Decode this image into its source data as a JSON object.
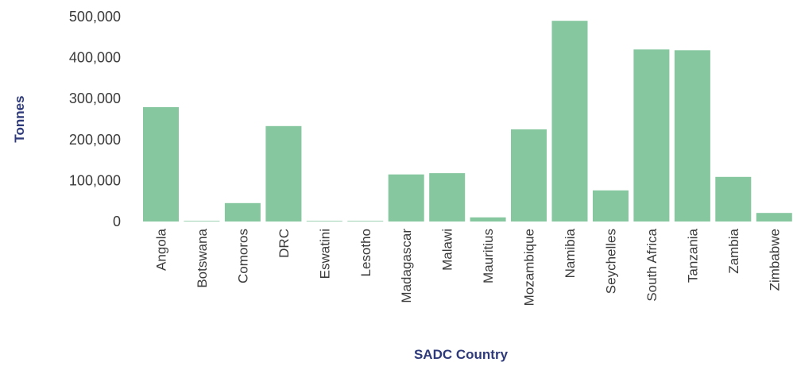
{
  "chart_data": {
    "type": "bar",
    "title": "",
    "xlabel": "SADC Country",
    "ylabel": "Tonnes",
    "categories": [
      "Angola",
      "Botswana",
      "Comoros",
      "DRC",
      "Eswatini",
      "Lesotho",
      "Madagascar",
      "Malawi",
      "Mauritius",
      "Mozambique",
      "Namibia",
      "Seychelles",
      "South Africa",
      "Tanzania",
      "Zambia",
      "Zimbabwe"
    ],
    "values": [
      279000,
      1500,
      45000,
      233000,
      1500,
      1500,
      115000,
      118000,
      10000,
      225000,
      490000,
      76000,
      420000,
      418000,
      109000,
      21000
    ],
    "ylim": [
      0,
      500000
    ],
    "yticks": [
      "0",
      "100,000",
      "200,000",
      "300,000",
      "400,000",
      "500,000"
    ],
    "grid": false,
    "colors": {
      "bar": "#86c7a0",
      "axis_title": "#2e3a7a",
      "tick_text": "#3a3a3a"
    }
  }
}
